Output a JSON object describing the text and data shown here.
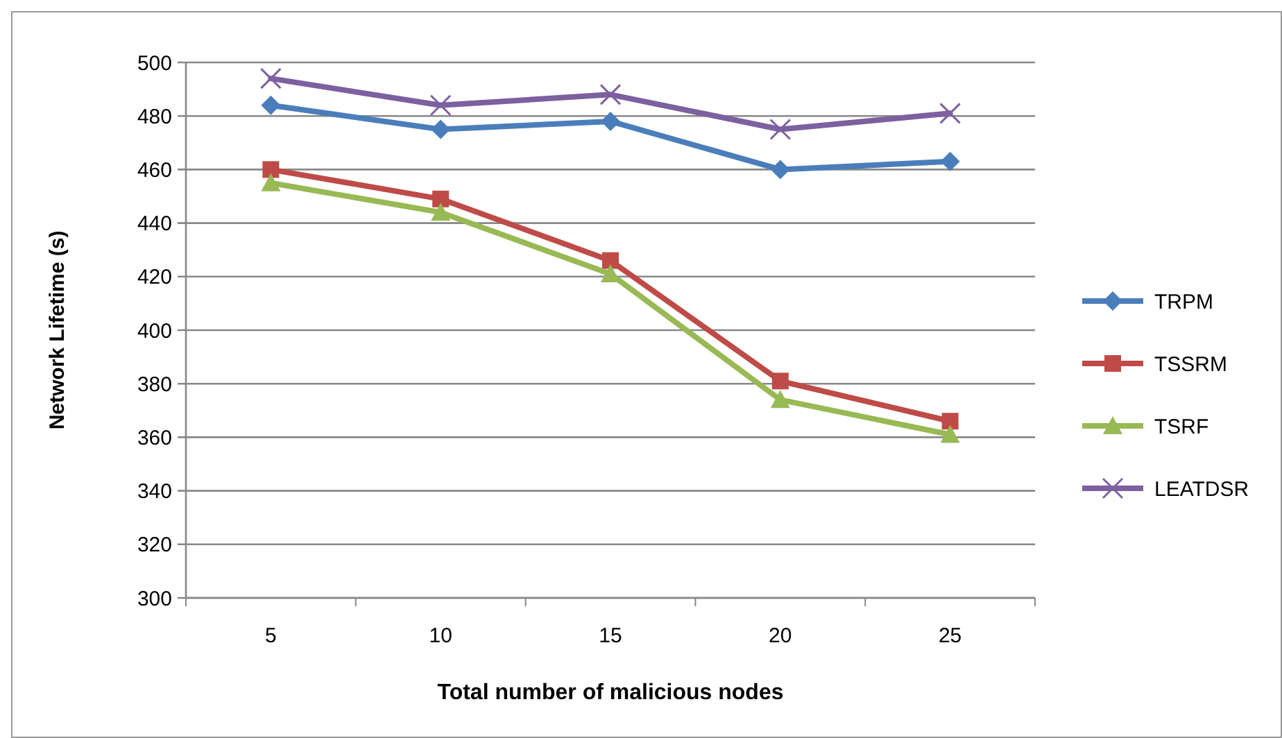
{
  "chart_data": {
    "type": "line",
    "xlabel": "Total number of malicious  nodes",
    "ylabel": "Network Lifetime (s)",
    "categories": [
      "5",
      "10",
      "15",
      "20",
      "25"
    ],
    "series": [
      {
        "name": "TRPM",
        "color": "#4a7ebb",
        "marker": "diamond",
        "values": [
          484,
          475,
          478,
          460,
          463
        ]
      },
      {
        "name": "TSSRM",
        "color": "#be4b48",
        "marker": "square",
        "values": [
          460,
          449,
          426,
          381,
          366
        ]
      },
      {
        "name": "TSRF",
        "color": "#98b954",
        "marker": "triangle",
        "values": [
          455,
          444,
          421,
          374,
          361
        ]
      },
      {
        "name": "LEATDSR",
        "color": "#7d60a0",
        "marker": "cross",
        "values": [
          494,
          484,
          488,
          475,
          481
        ]
      }
    ],
    "ylim": [
      300,
      500
    ],
    "yticks": [
      300,
      320,
      340,
      360,
      380,
      400,
      420,
      440,
      460,
      480,
      500
    ],
    "grid": "y",
    "legend": "right"
  }
}
